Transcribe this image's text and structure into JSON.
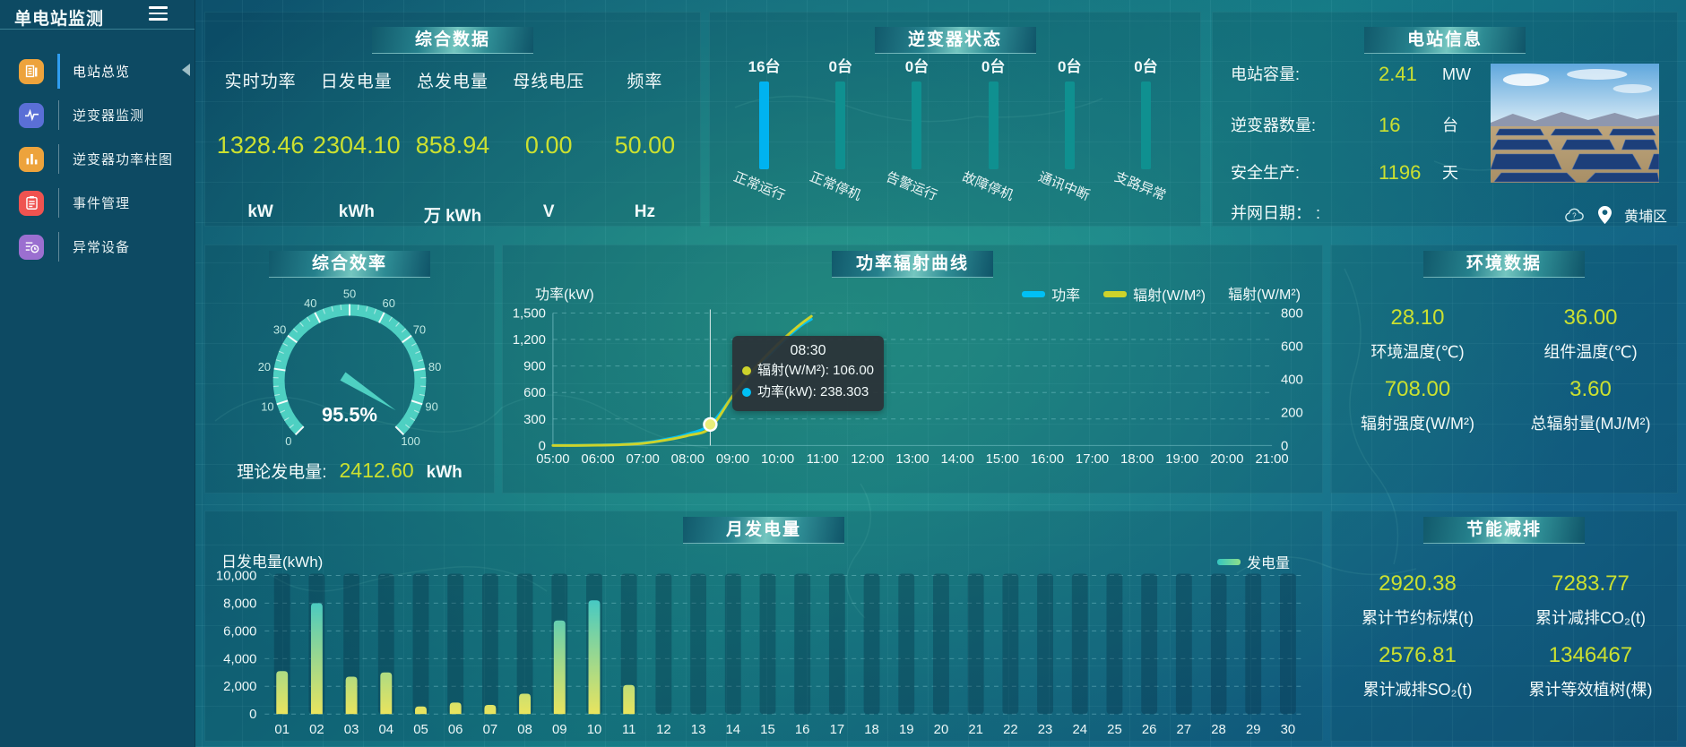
{
  "app": {
    "title": "单电站监测"
  },
  "sidebar": {
    "items": [
      {
        "id": "station-overview",
        "label": "电站总览",
        "icon": "overview-icon",
        "color": "#eda33c",
        "active": true
      },
      {
        "id": "inverter-monitor",
        "label": "逆变器监测",
        "icon": "inverter-monitor-icon",
        "color": "#5a6fd6",
        "active": false
      },
      {
        "id": "inverter-power-bars",
        "label": "逆变器功率柱图",
        "icon": "power-bars-icon",
        "color": "#eda33c",
        "active": false
      },
      {
        "id": "event-management",
        "label": "事件管理",
        "icon": "event-icon",
        "color": "#ef5350",
        "active": false
      },
      {
        "id": "abnormal-devices",
        "label": "异常设备",
        "icon": "abnormal-device-icon",
        "color": "#9b6fd0",
        "active": false
      }
    ]
  },
  "panels": {
    "summary": {
      "title": "综合数据",
      "metrics": [
        {
          "label": "实时功率",
          "value": "1328.46",
          "unit": "kW"
        },
        {
          "label": "日发电量",
          "value": "2304.10",
          "unit": "kWh"
        },
        {
          "label": "总发电量",
          "value": "858.94",
          "unit": "万 kWh"
        },
        {
          "label": "母线电压",
          "value": "0.00",
          "unit": "V"
        },
        {
          "label": "频率",
          "value": "50.00",
          "unit": "Hz"
        }
      ]
    },
    "inverter_status": {
      "title": "逆变器状态",
      "bars": [
        {
          "count": "16台",
          "label": "正常运行",
          "active": true
        },
        {
          "count": "0台",
          "label": "正常停机",
          "active": false
        },
        {
          "count": "0台",
          "label": "告警运行",
          "active": false
        },
        {
          "count": "0台",
          "label": "故障停机",
          "active": false
        },
        {
          "count": "0台",
          "label": "通讯中断",
          "active": false
        },
        {
          "count": "0台",
          "label": "支路异常",
          "active": false
        }
      ]
    },
    "station_info": {
      "title": "电站信息",
      "rows": [
        {
          "label": "电站容量:",
          "value": "2.41",
          "unit": "MW"
        },
        {
          "label": "逆变器数量:",
          "value": "16",
          "unit": "台"
        },
        {
          "label": "安全生产:",
          "value": "1196",
          "unit": "天"
        },
        {
          "label": "并网日期： :",
          "value": "",
          "unit": ""
        }
      ],
      "location": "黄埔区"
    },
    "efficiency": {
      "title": "综合效率",
      "value_label": "95.5%",
      "footer_label": "理论发电量:",
      "footer_value": "2412.60",
      "footer_unit": "kWh"
    },
    "power_curve": {
      "title": "功率辐射曲线",
      "tooltip": {
        "time": "08:30",
        "rows": [
          {
            "color": "#cdd32b",
            "text": "辐射(W/M²): 106.00"
          },
          {
            "color": "#00c0f5",
            "text": "功率(kW): 238.303"
          }
        ]
      }
    },
    "environment": {
      "title": "环境数据",
      "stats": [
        {
          "value": "28.10",
          "label": "环境温度(℃)"
        },
        {
          "value": "36.00",
          "label": "组件温度(℃)"
        },
        {
          "value": "708.00",
          "label": "辐射强度(W/M²)"
        },
        {
          "value": "3.60",
          "label": "总辐射量(MJ/M²)"
        }
      ]
    },
    "monthly": {
      "title": "月发电量"
    },
    "energy_saving": {
      "title": "节能减排",
      "stats": [
        {
          "value": "2920.38",
          "label": "累计节约标煤(t)"
        },
        {
          "value": "7283.77",
          "label": "累计减排CO₂(t)"
        },
        {
          "value": "2576.81",
          "label": "累计减排SO₂(t)"
        },
        {
          "value": "1346467",
          "label": "累计等效植树(棵)"
        }
      ]
    }
  },
  "colors": {
    "value_yellow": "#cbe030",
    "power_line": "#00c0f5",
    "radiation_line": "#cdd32b",
    "active_bar": "#00b3f0",
    "idle_bar": "#0f9090",
    "gauge": "#4ed0c2",
    "monthly_bar_top": "#22c3da",
    "monthly_bar_bottom": "#e9e45e"
  },
  "chart_data": [
    {
      "type": "line",
      "title": "功率辐射曲线",
      "x_range": [
        5,
        21
      ],
      "x_labels": [
        "05:00",
        "06:00",
        "07:00",
        "08:00",
        "09:00",
        "10:00",
        "11:00",
        "12:00",
        "13:00",
        "14:00",
        "15:00",
        "16:00",
        "17:00",
        "18:00",
        "19:00",
        "20:00",
        "21:00"
      ],
      "x": [
        5,
        5.5,
        6,
        6.5,
        7,
        7.5,
        8,
        8.5,
        9,
        9.5,
        10,
        10.5,
        10.75
      ],
      "series": [
        {
          "name": "功率",
          "axis": "left",
          "color": "#00c0f5",
          "values": [
            2,
            2,
            5,
            12,
            30,
            70,
            130,
            238.303,
            560,
            860,
            1120,
            1350,
            1430
          ]
        },
        {
          "name": "辐射(W/M²)",
          "axis": "right",
          "color": "#cdd32b",
          "values": [
            0,
            0,
            2,
            5,
            13,
            32,
            60,
            106,
            300,
            470,
            610,
            730,
            780
          ]
        }
      ],
      "left_axis": {
        "name": "功率(kW)",
        "min": 0,
        "max": 1500,
        "ticks": [
          0,
          300,
          600,
          900,
          1200,
          1500
        ],
        "tick_labels": [
          "0",
          "300",
          "600",
          "900",
          "1,200",
          "1,500"
        ]
      },
      "right_axis": {
        "name": "辐射(W/M²)",
        "min": 0,
        "max": 800,
        "ticks": [
          0,
          200,
          400,
          600,
          800
        ],
        "tick_labels": [
          "0",
          "200",
          "400",
          "600",
          "800"
        ]
      },
      "pointer_x": 8.5,
      "legend_position": "top-right",
      "grid": "dashed"
    },
    {
      "type": "gauge",
      "title": "综合效率",
      "value": 95.5,
      "min": 0,
      "max": 100,
      "label": "95.5%",
      "tick_labels": [
        0,
        10,
        20,
        30,
        40,
        50,
        60,
        70,
        80,
        90,
        100
      ]
    },
    {
      "type": "bar",
      "title": "月发电量",
      "ylabel": "日发电量(kWh)",
      "ylim": [
        0,
        10000
      ],
      "yticks": [
        0,
        2000,
        4000,
        6000,
        8000,
        10000
      ],
      "ytick_labels": [
        "0",
        "2,000",
        "4,000",
        "6,000",
        "8,000",
        "10,000"
      ],
      "categories": [
        "01",
        "02",
        "03",
        "04",
        "05",
        "06",
        "07",
        "08",
        "09",
        "10",
        "11",
        "12",
        "13",
        "14",
        "15",
        "16",
        "17",
        "18",
        "19",
        "20",
        "21",
        "22",
        "23",
        "24",
        "25",
        "26",
        "27",
        "28",
        "29",
        "30"
      ],
      "series": [
        {
          "name": "发电量",
          "values": [
            3100,
            8000,
            2700,
            3000,
            550,
            830,
            660,
            1470,
            6750,
            8200,
            2100,
            0,
            0,
            0,
            0,
            0,
            0,
            0,
            0,
            0,
            0,
            0,
            0,
            0,
            0,
            0,
            0,
            0,
            0,
            0
          ]
        }
      ],
      "legend_position": "top-right",
      "grid": "dashed"
    }
  ]
}
